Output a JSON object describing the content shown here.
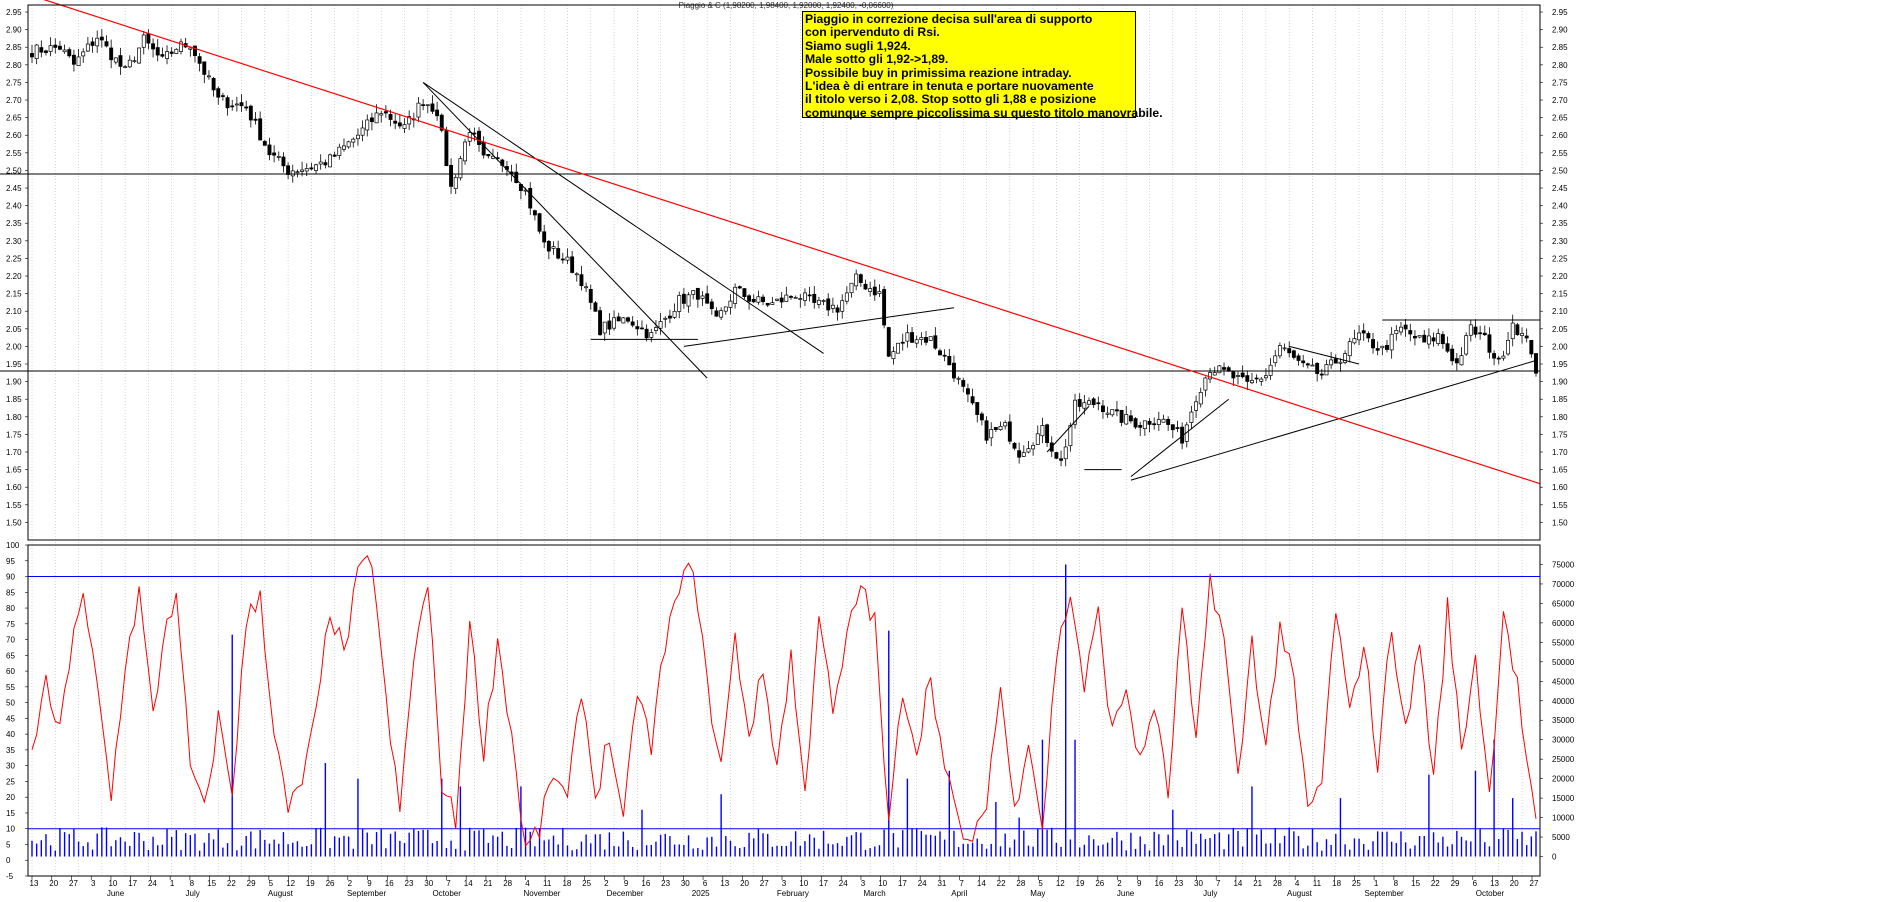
{
  "header": {
    "title": "Piaggio & C (1,98200, 1,98400, 1,92000, 1,92400, -0,06600)"
  },
  "annotation": {
    "lines": [
      "Piaggio in correzione decisa sull'area di supporto",
      "con ipervenduto di Rsi.",
      "Siamo sugli 1,924.",
      "Male sotto gli 1,92->1,89.",
      "Possibile buy in primissima reazione intraday.",
      "L'idea è di entrare in tenuta e portare nuovamente",
      "il titolo verso i 2,08. Stop sotto gli 1,88 e posizione",
      "comunque sempre piccolissima su questo titolo manovrabile."
    ]
  },
  "colors": {
    "price": "#000000",
    "trend_red": "#ff0000",
    "rsi": "#ff0000",
    "rsi_levels": "#0000ff",
    "volume": "#0000ff",
    "grid": "#bdbdbd",
    "note_bg": "#ffff00"
  },
  "chart_data": [
    {
      "type": "candlestick",
      "ylim": [
        1.45,
        2.97
      ],
      "yticks": [
        "2.95",
        "2.90",
        "2.85",
        "2.80",
        "2.75",
        "2.70",
        "2.65",
        "2.60",
        "2.55",
        "2.50",
        "2.45",
        "2.40",
        "2.35",
        "2.30",
        "2.25",
        "2.20",
        "2.15",
        "2.10",
        "2.05",
        "2.00",
        "1.95",
        "1.90",
        "1.85",
        "1.80",
        "1.75",
        "1.70",
        "1.65",
        "1.60",
        "1.55",
        "1.50"
      ],
      "x_day_labels": [
        "13",
        "20",
        "27",
        "3",
        "10",
        "17",
        "24",
        "1",
        "8",
        "15",
        "22",
        "29",
        "5",
        "12",
        "19",
        "26",
        "2",
        "9",
        "16",
        "23",
        "30",
        "7",
        "14",
        "21",
        "28",
        "4",
        "11",
        "18",
        "25",
        "2",
        "9",
        "16",
        "23",
        "30",
        "6",
        "13",
        "20",
        "27",
        "3",
        "10",
        "17",
        "24",
        "3",
        "10",
        "17",
        "24",
        "31",
        "7",
        "14",
        "22",
        "28",
        "5",
        "12",
        "19",
        "26",
        "2",
        "9",
        "16",
        "23",
        "30",
        "7",
        "14",
        "21",
        "28",
        "4",
        "11",
        "18",
        "25",
        "1",
        "8",
        "15",
        "22",
        "29",
        "6",
        "13",
        "20",
        "27"
      ],
      "x_month_labels": [
        "June",
        "July",
        "August",
        "September",
        "October",
        "November",
        "December",
        "2025",
        "February",
        "March",
        "April",
        "May",
        "June",
        "July",
        "August",
        "September",
        "October"
      ],
      "keypoints": [
        {
          "i": 0,
          "v": 2.84
        },
        {
          "i": 6,
          "v": 2.85
        },
        {
          "i": 9,
          "v": 2.8
        },
        {
          "i": 14,
          "v": 2.88
        },
        {
          "i": 20,
          "v": 2.78
        },
        {
          "i": 24,
          "v": 2.87
        },
        {
          "i": 28,
          "v": 2.81
        },
        {
          "i": 31,
          "v": 2.85
        },
        {
          "i": 34,
          "v": 2.86
        },
        {
          "i": 40,
          "v": 2.7
        },
        {
          "i": 46,
          "v": 2.68
        },
        {
          "i": 51,
          "v": 2.55
        },
        {
          "i": 55,
          "v": 2.5
        },
        {
          "i": 60,
          "v": 2.51
        },
        {
          "i": 64,
          "v": 2.53
        },
        {
          "i": 70,
          "v": 2.6
        },
        {
          "i": 75,
          "v": 2.67
        },
        {
          "i": 80,
          "v": 2.62
        },
        {
          "i": 84,
          "v": 2.7
        },
        {
          "i": 87,
          "v": 2.67
        },
        {
          "i": 90,
          "v": 2.45
        },
        {
          "i": 94,
          "v": 2.62
        },
        {
          "i": 97,
          "v": 2.53
        },
        {
          "i": 102,
          "v": 2.52
        },
        {
          "i": 106,
          "v": 2.44
        },
        {
          "i": 110,
          "v": 2.29
        },
        {
          "i": 115,
          "v": 2.24
        },
        {
          "i": 118,
          "v": 2.19
        },
        {
          "i": 122,
          "v": 2.05
        },
        {
          "i": 128,
          "v": 2.08
        },
        {
          "i": 133,
          "v": 2.03
        },
        {
          "i": 139,
          "v": 2.13
        },
        {
          "i": 143,
          "v": 2.15
        },
        {
          "i": 147,
          "v": 2.07
        },
        {
          "i": 151,
          "v": 2.16
        },
        {
          "i": 155,
          "v": 2.13
        },
        {
          "i": 159,
          "v": 2.12
        },
        {
          "i": 164,
          "v": 2.15
        },
        {
          "i": 168,
          "v": 2.12
        },
        {
          "i": 173,
          "v": 2.11
        },
        {
          "i": 177,
          "v": 2.19
        },
        {
          "i": 182,
          "v": 2.15
        },
        {
          "i": 184,
          "v": 1.97
        },
        {
          "i": 188,
          "v": 2.03
        },
        {
          "i": 193,
          "v": 2.02
        },
        {
          "i": 197,
          "v": 1.95
        },
        {
          "i": 201,
          "v": 1.85
        },
        {
          "i": 205,
          "v": 1.75
        },
        {
          "i": 209,
          "v": 1.77
        },
        {
          "i": 212,
          "v": 1.7
        },
        {
          "i": 217,
          "v": 1.76
        },
        {
          "i": 221,
          "v": 1.67
        },
        {
          "i": 224,
          "v": 1.83
        },
        {
          "i": 229,
          "v": 1.84
        },
        {
          "i": 233,
          "v": 1.8
        },
        {
          "i": 238,
          "v": 1.78
        },
        {
          "i": 242,
          "v": 1.8
        },
        {
          "i": 247,
          "v": 1.74
        },
        {
          "i": 250,
          "v": 1.86
        },
        {
          "i": 253,
          "v": 1.94
        },
        {
          "i": 257,
          "v": 1.92
        },
        {
          "i": 261,
          "v": 1.89
        },
        {
          "i": 265,
          "v": 1.92
        },
        {
          "i": 268,
          "v": 2.0
        },
        {
          "i": 273,
          "v": 1.94
        },
        {
          "i": 277,
          "v": 1.92
        },
        {
          "i": 281,
          "v": 1.97
        },
        {
          "i": 285,
          "v": 2.03
        },
        {
          "i": 290,
          "v": 1.99
        },
        {
          "i": 294,
          "v": 2.05
        },
        {
          "i": 299,
          "v": 2.01
        },
        {
          "i": 302,
          "v": 2.03
        },
        {
          "i": 306,
          "v": 1.95
        },
        {
          "i": 309,
          "v": 2.05
        },
        {
          "i": 312,
          "v": 2.02
        },
        {
          "i": 315,
          "v": 1.95
        },
        {
          "i": 318,
          "v": 2.07
        },
        {
          "i": 320,
          "v": 2.03
        },
        {
          "i": 322,
          "v": 1.99
        },
        {
          "i": 323,
          "v": 1.924
        }
      ],
      "n_sessions": 324,
      "horizontal_lines": [
        2.49,
        1.93
      ],
      "support_segments": [
        [
          2.02,
          2.02
        ],
        [
          2.075,
          2.075
        ]
      ],
      "red_trendline": [
        {
          "x": 0.0,
          "y": 3.0
        },
        {
          "x": 1.0,
          "y": 1.61
        }
      ]
    },
    {
      "type": "line",
      "name": "Rsi",
      "ylim": [
        -5,
        100
      ],
      "yticks": [
        "100",
        "95",
        "90",
        "85",
        "80",
        "75",
        "70",
        "65",
        "60",
        "55",
        "50",
        "45",
        "40",
        "35",
        "30",
        "25",
        "20",
        "15",
        "10",
        "5",
        "0",
        "-5"
      ],
      "levels": [
        90,
        10
      ],
      "keypoints": [
        {
          "i": 0,
          "v": 36
        },
        {
          "i": 3,
          "v": 55
        },
        {
          "i": 6,
          "v": 40
        },
        {
          "i": 9,
          "v": 75
        },
        {
          "i": 11,
          "v": 82
        },
        {
          "i": 14,
          "v": 55
        },
        {
          "i": 17,
          "v": 20
        },
        {
          "i": 20,
          "v": 62
        },
        {
          "i": 23,
          "v": 85
        },
        {
          "i": 26,
          "v": 45
        },
        {
          "i": 29,
          "v": 78
        },
        {
          "i": 31,
          "v": 82
        },
        {
          "i": 34,
          "v": 30
        },
        {
          "i": 37,
          "v": 15
        },
        {
          "i": 40,
          "v": 45
        },
        {
          "i": 43,
          "v": 22
        },
        {
          "i": 46,
          "v": 75
        },
        {
          "i": 49,
          "v": 85
        },
        {
          "i": 52,
          "v": 40
        },
        {
          "i": 55,
          "v": 15
        },
        {
          "i": 58,
          "v": 25
        },
        {
          "i": 61,
          "v": 45
        },
        {
          "i": 64,
          "v": 80
        },
        {
          "i": 67,
          "v": 65
        },
        {
          "i": 70,
          "v": 90
        },
        {
          "i": 73,
          "v": 96
        },
        {
          "i": 76,
          "v": 50
        },
        {
          "i": 79,
          "v": 15
        },
        {
          "i": 82,
          "v": 65
        },
        {
          "i": 85,
          "v": 87
        },
        {
          "i": 88,
          "v": 25
        },
        {
          "i": 91,
          "v": 12
        },
        {
          "i": 94,
          "v": 75
        },
        {
          "i": 97,
          "v": 35
        },
        {
          "i": 100,
          "v": 70
        },
        {
          "i": 103,
          "v": 40
        },
        {
          "i": 106,
          "v": 3
        },
        {
          "i": 109,
          "v": 10
        },
        {
          "i": 112,
          "v": 28
        },
        {
          "i": 115,
          "v": 18
        },
        {
          "i": 118,
          "v": 55
        },
        {
          "i": 121,
          "v": 20
        },
        {
          "i": 124,
          "v": 40
        },
        {
          "i": 127,
          "v": 10
        },
        {
          "i": 130,
          "v": 55
        },
        {
          "i": 133,
          "v": 35
        },
        {
          "i": 136,
          "v": 70
        },
        {
          "i": 139,
          "v": 85
        },
        {
          "i": 142,
          "v": 95
        },
        {
          "i": 145,
          "v": 55
        },
        {
          "i": 148,
          "v": 30
        },
        {
          "i": 151,
          "v": 70
        },
        {
          "i": 154,
          "v": 40
        },
        {
          "i": 157,
          "v": 60
        },
        {
          "i": 160,
          "v": 30
        },
        {
          "i": 163,
          "v": 65
        },
        {
          "i": 166,
          "v": 20
        },
        {
          "i": 169,
          "v": 80
        },
        {
          "i": 172,
          "v": 45
        },
        {
          "i": 175,
          "v": 70
        },
        {
          "i": 178,
          "v": 88
        },
        {
          "i": 181,
          "v": 75
        },
        {
          "i": 184,
          "v": 10
        },
        {
          "i": 187,
          "v": 55
        },
        {
          "i": 190,
          "v": 35
        },
        {
          "i": 193,
          "v": 60
        },
        {
          "i": 196,
          "v": 28
        },
        {
          "i": 199,
          "v": 12
        },
        {
          "i": 202,
          "v": 3
        },
        {
          "i": 205,
          "v": 20
        },
        {
          "i": 208,
          "v": 55
        },
        {
          "i": 211,
          "v": 15
        },
        {
          "i": 214,
          "v": 40
        },
        {
          "i": 217,
          "v": 10
        },
        {
          "i": 220,
          "v": 65
        },
        {
          "i": 223,
          "v": 85
        },
        {
          "i": 226,
          "v": 55
        },
        {
          "i": 229,
          "v": 78
        },
        {
          "i": 232,
          "v": 40
        },
        {
          "i": 235,
          "v": 55
        },
        {
          "i": 238,
          "v": 30
        },
        {
          "i": 241,
          "v": 50
        },
        {
          "i": 244,
          "v": 20
        },
        {
          "i": 247,
          "v": 80
        },
        {
          "i": 250,
          "v": 35
        },
        {
          "i": 253,
          "v": 90
        },
        {
          "i": 256,
          "v": 70
        },
        {
          "i": 259,
          "v": 25
        },
        {
          "i": 262,
          "v": 70
        },
        {
          "i": 265,
          "v": 35
        },
        {
          "i": 268,
          "v": 75
        },
        {
          "i": 271,
          "v": 55
        },
        {
          "i": 274,
          "v": 15
        },
        {
          "i": 277,
          "v": 25
        },
        {
          "i": 280,
          "v": 80
        },
        {
          "i": 283,
          "v": 45
        },
        {
          "i": 286,
          "v": 70
        },
        {
          "i": 289,
          "v": 30
        },
        {
          "i": 292,
          "v": 75
        },
        {
          "i": 295,
          "v": 40
        },
        {
          "i": 298,
          "v": 70
        },
        {
          "i": 301,
          "v": 25
        },
        {
          "i": 304,
          "v": 80
        },
        {
          "i": 307,
          "v": 35
        },
        {
          "i": 310,
          "v": 65
        },
        {
          "i": 313,
          "v": 20
        },
        {
          "i": 316,
          "v": 80
        },
        {
          "i": 319,
          "v": 55
        },
        {
          "i": 322,
          "v": 20
        },
        {
          "i": 323,
          "v": 10
        }
      ]
    },
    {
      "type": "bar",
      "name": "Volume",
      "ylim": [
        -5000,
        80000
      ],
      "yticks": [
        "75000",
        "70000",
        "65000",
        "60000",
        "55000",
        "50000",
        "45000",
        "40000",
        "35000",
        "30000",
        "25000",
        "20000",
        "15000",
        "10000",
        "5000",
        "0"
      ],
      "spikes": [
        {
          "i": 43,
          "v": 57000
        },
        {
          "i": 63,
          "v": 24000
        },
        {
          "i": 70,
          "v": 20000
        },
        {
          "i": 88,
          "v": 20000
        },
        {
          "i": 92,
          "v": 18000
        },
        {
          "i": 105,
          "v": 18000
        },
        {
          "i": 131,
          "v": 12000
        },
        {
          "i": 148,
          "v": 16000
        },
        {
          "i": 184,
          "v": 58000
        },
        {
          "i": 188,
          "v": 20000
        },
        {
          "i": 197,
          "v": 22000
        },
        {
          "i": 207,
          "v": 14000
        },
        {
          "i": 212,
          "v": 10000
        },
        {
          "i": 217,
          "v": 30000
        },
        {
          "i": 222,
          "v": 75000
        },
        {
          "i": 224,
          "v": 30000
        },
        {
          "i": 245,
          "v": 12000
        },
        {
          "i": 262,
          "v": 18000
        },
        {
          "i": 281,
          "v": 15000
        },
        {
          "i": 300,
          "v": 21000
        },
        {
          "i": 310,
          "v": 22000
        },
        {
          "i": 314,
          "v": 30000
        },
        {
          "i": 318,
          "v": 15000
        }
      ]
    }
  ]
}
